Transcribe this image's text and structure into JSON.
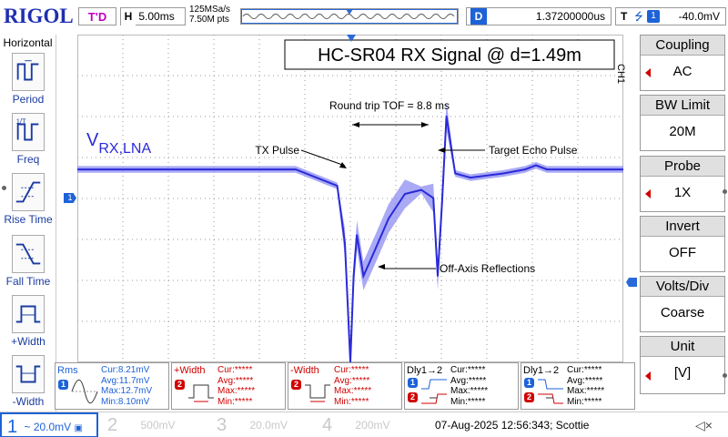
{
  "topbar": {
    "brand": "RIGOL",
    "trigger_state": "T'D",
    "horizontal": {
      "key": "H",
      "timebase": "5.00ms"
    },
    "sample_rate": "125MSa/s",
    "memory_depth": "7.50M pts",
    "delay": {
      "key": "D",
      "value": "1.37200000us"
    },
    "trigger": {
      "key": "T",
      "channel": "1",
      "level": "-40.0mV"
    }
  },
  "left_panel": {
    "title": "Horizontal",
    "items": [
      "Period",
      "Freq",
      "Rise Time",
      "Fall Time",
      "+Width",
      "-Width"
    ]
  },
  "right_panel": {
    "channel_tag": "CH1",
    "items": [
      {
        "label": "Coupling",
        "value": "AC"
      },
      {
        "label": "BW Limit",
        "value": "20M"
      },
      {
        "label": "Probe",
        "value": "1X"
      },
      {
        "label": "Invert",
        "value": "OFF"
      },
      {
        "label": "Volts/Div",
        "value": "Coarse"
      },
      {
        "label": "Unit",
        "value": "[V]"
      }
    ]
  },
  "plot": {
    "title": "HC-SR04 RX Signal @ d=1.49m",
    "signal_label_main": "V",
    "signal_label_sub": "RX,LNA",
    "annotations": {
      "tof": "Round trip TOF = 8.8 ms",
      "tx_pulse": "TX Pulse",
      "target_echo": "Target Echo Pulse",
      "off_axis": "Off-Axis Reflections"
    },
    "ch1_marker": "1"
  },
  "chart_data": {
    "type": "line",
    "series": [
      {
        "x": [
          -25,
          -5,
          -1.2,
          -0.5,
          0,
          0.3,
          0.6,
          1.2,
          2.2,
          3.5,
          5,
          6.5,
          7.6,
          8.0,
          8.4,
          8.8,
          9.6,
          11,
          14,
          16,
          17,
          18,
          21,
          25
        ],
        "values": [
          0,
          0,
          -0.4,
          -1.8,
          -4.7,
          -2.6,
          -1.6,
          -2.6,
          -2.0,
          -1.2,
          -0.6,
          -0.5,
          -0.7,
          -2.6,
          -0.8,
          1.3,
          -0.1,
          -0.2,
          -0.1,
          0.0,
          0.1,
          0.0,
          0.0,
          0.0
        ]
      }
    ],
    "xlim": [
      -25,
      25
    ],
    "ylim": [
      -4,
      4
    ],
    "grid": true
  },
  "measurements": [
    {
      "name": "Rms",
      "badge": "1",
      "lines": [
        "Cur:8.21mV",
        "Avg:11.7mV",
        "Max:12.7mV",
        "Min:8.10mV"
      ]
    },
    {
      "name": "+Width",
      "badge": "2",
      "lines": [
        "Cur:*****",
        "Avg:*****",
        "Max:*****",
        "Min:*****"
      ]
    },
    {
      "name": "-Width",
      "badge": "2",
      "lines": [
        "Cur:*****",
        "Avg:*****",
        "Max:*****",
        "Min:*****"
      ]
    },
    {
      "name": "Dly1→2",
      "badge": "1",
      "lines": [
        "Cur:*****",
        "Avg:*****",
        "Max:*****",
        "Min:*****"
      ]
    },
    {
      "name": "Dly1→2",
      "badge": "1",
      "lines": [
        "Cur:*****",
        "Avg:*****",
        "Max:*****",
        "Min:*****"
      ]
    }
  ],
  "bottombar": {
    "channels": [
      {
        "num": "1",
        "value": "20.0mV"
      },
      {
        "num": "2",
        "value": "500mV"
      },
      {
        "num": "3",
        "value": "20.0mV"
      },
      {
        "num": "4",
        "value": "200mV"
      }
    ],
    "datetime": "07-Aug-2025 12:56:343; Scottie"
  },
  "colors": {
    "brand": "#1f2fb0",
    "trace": "#2a2ad8",
    "trace_fill": "#8c8cf2",
    "accent_blue": "#1e62d8",
    "trigger_magenta": "#c000c0",
    "arrow_red": "#d00000"
  }
}
